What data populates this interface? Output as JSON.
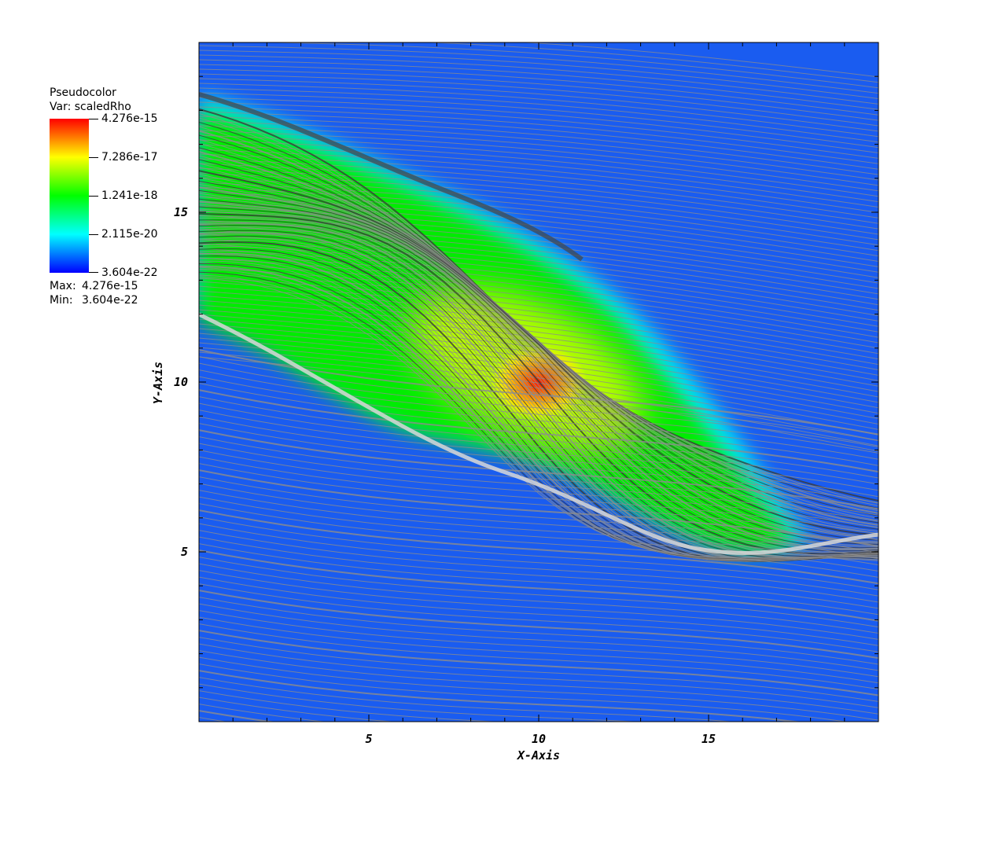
{
  "legend": {
    "plot_type": "Pseudocolor",
    "var_label": "Var: scaledRho",
    "colorbar_labels": [
      "4.276e-15",
      "7.286e-17",
      "1.241e-18",
      "2.115e-20",
      "3.604e-22"
    ],
    "colorbar_colors": [
      "#ff0000",
      "#ffff00",
      "#00ff00",
      "#00ffff",
      "#0000ff"
    ],
    "max_label": "Max:",
    "max_value": "4.276e-15",
    "min_label": "Min:",
    "min_value": "3.604e-22"
  },
  "colors": {
    "background_field": "#1a5cf0",
    "streamline": "#8c8c8c",
    "dense_streamline": "#3a3a3a"
  },
  "chart_data": {
    "type": "heatmap",
    "title": "",
    "xlabel": "X-Axis",
    "ylabel": "Y-Axis",
    "xlim": [
      0,
      20
    ],
    "ylim": [
      0,
      20
    ],
    "x_ticks": [
      5,
      10,
      15
    ],
    "y_ticks": [
      5,
      10,
      15
    ],
    "grid": false,
    "colorbar_scale": "log",
    "overlay": "streamlines",
    "peak": {
      "x": 10,
      "y": 10
    }
  }
}
